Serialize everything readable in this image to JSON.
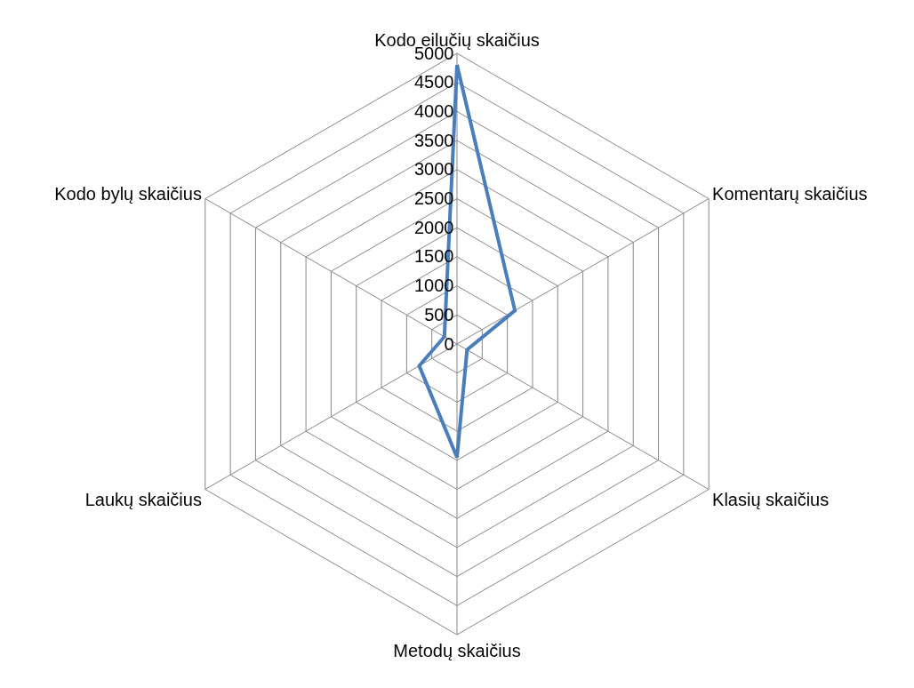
{
  "chart_data": {
    "type": "radar",
    "categories": [
      "Kodo eilučių skaičius",
      "Komentarų skaičius",
      "Klasių skaičius",
      "Metodų skaičius",
      "Laukų skaičius",
      "Kodo bylų skaičius"
    ],
    "series": [
      {
        "color": "#4a7ebb",
        "values": [
          4800,
          1150,
          200,
          1950,
          750,
          250
        ]
      }
    ],
    "ylim": [
      0,
      5000
    ],
    "yticks": [
      0,
      500,
      1000,
      1500,
      2000,
      2500,
      3000,
      3500,
      4000,
      4500,
      5000
    ],
    "grid": true,
    "marker": "none",
    "line_style": "solid"
  }
}
